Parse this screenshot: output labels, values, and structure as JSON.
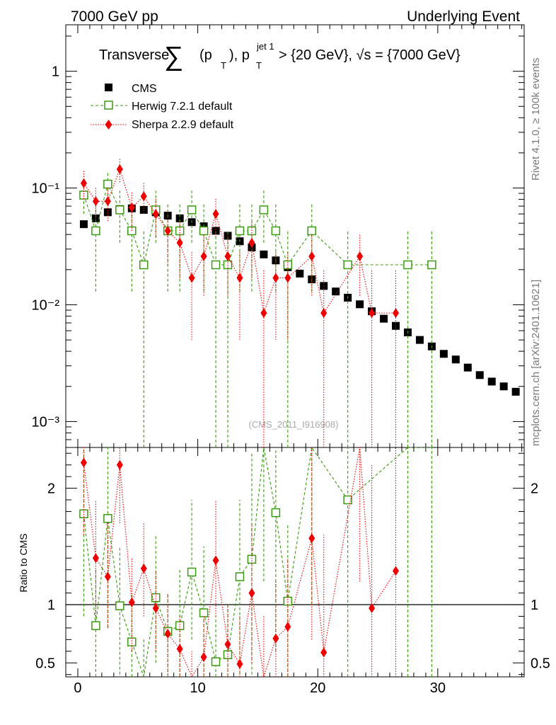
{
  "header": {
    "left": "7000 GeV pp",
    "right": "Underlying Event"
  },
  "side_labels": {
    "rivet": "Rivet 4.1.0, ≥ 100k events",
    "mcplots": "mcplots.cern.ch [arXiv:2401.10621]"
  },
  "watermark": "(CMS_2011_I916908)",
  "title": {
    "prefix": "Transverse ",
    "sum": "∑",
    "open": "(p",
    "sub_t": "T",
    "mid": "), p",
    "sup_jet": "jet 1",
    "suffix": " > {20 GeV}, √s = {7000 GeV}"
  },
  "colors": {
    "cms": "#000000",
    "herwig": "#3a9a10",
    "sherpa": "#ee0000"
  },
  "chart_data": {
    "type": "scatter",
    "xlim": [
      -1,
      37.2
    ],
    "xticks": [
      0,
      10,
      20,
      30
    ],
    "main": {
      "yscale": "log",
      "ylim": [
        0.0006,
        2.5
      ],
      "yticks": [
        {
          "v": 0.001,
          "label": "10⁻³"
        },
        {
          "v": 0.01,
          "label": "10⁻²"
        },
        {
          "v": 0.1,
          "label": "10⁻¹"
        },
        {
          "v": 1,
          "label": "1"
        }
      ]
    },
    "ratio": {
      "ylabel": "Ratio to CMS",
      "ylim": [
        0.38,
        2.35
      ],
      "yticks": [
        {
          "v": 0.5,
          "label": "0.5"
        },
        {
          "v": 1,
          "label": "1"
        },
        {
          "v": 2,
          "label": "2"
        }
      ]
    },
    "series": [
      {
        "name": "CMS",
        "key": "cms",
        "x": [
          0.5,
          1.5,
          2.5,
          3.5,
          4.5,
          5.5,
          6.5,
          7.5,
          8.5,
          9.5,
          10.5,
          11.5,
          12.5,
          13.5,
          14.5,
          15.5,
          16.5,
          17.5,
          18.5,
          19.5,
          20.5,
          21.5,
          22.5,
          23.5,
          24.5,
          25.5,
          26.5,
          27.5,
          28.5,
          29.5,
          30.5,
          31.5,
          32.5,
          33.5,
          34.5,
          35.5,
          36.5
        ],
        "y": [
          0.049,
          0.055,
          0.062,
          0.066,
          0.067,
          0.065,
          0.062,
          0.058,
          0.055,
          0.051,
          0.047,
          0.043,
          0.039,
          0.035,
          0.031,
          0.027,
          0.024,
          0.021,
          0.0185,
          0.0165,
          0.0145,
          0.013,
          0.0115,
          0.0101,
          0.0088,
          0.0076,
          0.0066,
          0.0058,
          0.005,
          0.0044,
          0.0038,
          0.0034,
          0.0029,
          0.0025,
          0.0022,
          0.002,
          0.0018
        ]
      },
      {
        "name": "Herwig 7.2.1 default",
        "key": "herwig",
        "x": [
          0.5,
          1.5,
          2.5,
          3.5,
          4.5,
          5.5,
          6.5,
          7.5,
          8.5,
          9.5,
          10.5,
          11.5,
          12.5,
          13.5,
          14.5,
          15.5,
          16.5,
          17.5,
          19.5,
          22.5,
          27.5,
          29.5
        ],
        "y": [
          0.087,
          0.043,
          0.108,
          0.065,
          0.043,
          0.022,
          0.065,
          0.043,
          0.043,
          0.065,
          0.043,
          0.022,
          0.022,
          0.043,
          0.043,
          0.065,
          0.043,
          0.022,
          0.043,
          0.022,
          0.022,
          0.022
        ],
        "ylo": [
          0.06,
          0.013,
          0.078,
          0.034,
          0.013,
          0.0003,
          0.034,
          0.013,
          0.013,
          0.034,
          0.013,
          0.0003,
          0.0003,
          0.013,
          0.013,
          0.034,
          0.013,
          0.0003,
          0.013,
          0.0003,
          0.0003,
          0.0003
        ],
        "yhi": [
          0.115,
          0.073,
          0.138,
          0.095,
          0.073,
          0.044,
          0.095,
          0.073,
          0.073,
          0.095,
          0.073,
          0.044,
          0.044,
          0.073,
          0.073,
          0.095,
          0.073,
          0.044,
          0.073,
          0.044,
          0.044,
          0.044
        ],
        "ratio": [
          1.78,
          0.82,
          1.74,
          0.99,
          0.68,
          0.34,
          1.06,
          0.77,
          0.82,
          1.28,
          0.93,
          0.51,
          0.57,
          1.24,
          1.39,
          2.4,
          1.79,
          1.03,
          2.6,
          1.9,
          2.6,
          2.6
        ],
        "rlo": [
          0.9,
          0.2,
          0.8,
          0.4,
          0.2,
          0.2,
          0.5,
          0.3,
          0.3,
          0.7,
          0.3,
          0.2,
          0.2,
          0.4,
          0.4,
          1.2,
          0.6,
          0.2,
          1.0,
          0.2,
          0.2,
          0.2
        ],
        "rhi": [
          2.4,
          1.3,
          2.4,
          1.5,
          1.1,
          0.7,
          1.6,
          1.1,
          1.3,
          1.9,
          1.5,
          0.9,
          1.0,
          1.9,
          2.3,
          3.5,
          2.9,
          1.7,
          3.6,
          3.4,
          3.6,
          3.6
        ]
      },
      {
        "name": "Sherpa 2.2.9 default",
        "key": "sherpa",
        "x": [
          0.5,
          1.5,
          2.5,
          3.5,
          4.5,
          5.5,
          6.5,
          7.5,
          8.5,
          9.5,
          10.5,
          11.5,
          12.5,
          13.5,
          14.5,
          15.5,
          16.5,
          17.5,
          19.5,
          20.5,
          23.5,
          24.5,
          26.5
        ],
        "y": [
          0.11,
          0.077,
          0.077,
          0.145,
          0.068,
          0.085,
          0.06,
          0.043,
          0.034,
          0.017,
          0.026,
          0.06,
          0.026,
          0.017,
          0.034,
          0.0085,
          0.017,
          0.017,
          0.026,
          0.0085,
          0.026,
          0.0085,
          0.0085
        ],
        "ylo": [
          0.08,
          0.052,
          0.052,
          0.112,
          0.043,
          0.06,
          0.038,
          0.022,
          0.017,
          0.005,
          0.012,
          0.038,
          0.012,
          0.005,
          0.017,
          0.0003,
          0.005,
          0.005,
          0.012,
          0.0003,
          0.012,
          0.0003,
          0.0003
        ],
        "yhi": [
          0.14,
          0.102,
          0.102,
          0.178,
          0.093,
          0.11,
          0.082,
          0.064,
          0.051,
          0.029,
          0.04,
          0.082,
          0.04,
          0.029,
          0.051,
          0.02,
          0.029,
          0.029,
          0.04,
          0.02,
          0.04,
          0.02,
          0.02
        ],
        "ratio": [
          2.22,
          1.4,
          1.24,
          2.2,
          1.02,
          1.31,
          0.97,
          0.75,
          0.62,
          0.33,
          0.55,
          1.38,
          0.66,
          0.49,
          1.1,
          0.31,
          0.71,
          0.81,
          1.57,
          0.59,
          2.55,
          0.97,
          1.29
        ],
        "rlo": [
          1.6,
          0.9,
          0.8,
          1.7,
          0.6,
          0.9,
          0.6,
          0.4,
          0.3,
          0.1,
          0.2,
          0.9,
          0.3,
          0.1,
          0.5,
          0.1,
          0.2,
          0.2,
          0.7,
          0.1,
          1.2,
          0.1,
          0.1
        ],
        "rhi": [
          2.8,
          1.9,
          1.7,
          2.7,
          1.4,
          1.7,
          1.3,
          1.1,
          0.9,
          0.6,
          0.9,
          1.9,
          1.0,
          0.9,
          1.7,
          0.9,
          1.2,
          1.4,
          2.4,
          1.6,
          3.5,
          2.2,
          2.5
        ]
      }
    ]
  }
}
